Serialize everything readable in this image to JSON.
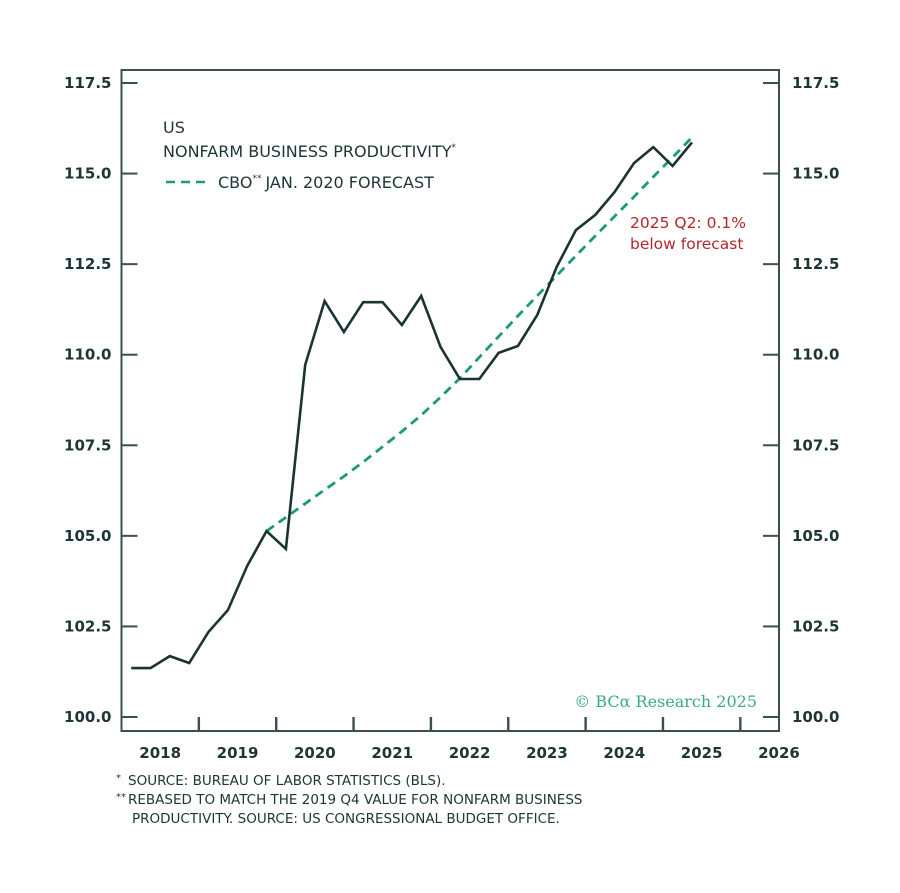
{
  "chart_data": {
    "type": "line",
    "title": "US NONFARM BUSINESS PRODUCTIVITY",
    "title_line1": "US",
    "title_line2": "NONFARM BUSINESS PRODUCTIVITY",
    "title_footnote_mark": "*",
    "xlabel": "",
    "ylabel": "",
    "xlim": [
      2018.0,
      2026.5
    ],
    "ylim": [
      100.0,
      117.5
    ],
    "grid": false,
    "x_tick_labels": [
      "2018",
      "2019",
      "2020",
      "2021",
      "2022",
      "2023",
      "2024",
      "2025",
      "2026"
    ],
    "y_tick_labels": [
      "100.0",
      "102.5",
      "105.0",
      "107.5",
      "110.0",
      "112.5",
      "115.0",
      "117.5"
    ],
    "y_ticks": [
      100.0,
      102.5,
      105.0,
      107.5,
      110.0,
      112.5,
      115.0,
      117.5
    ],
    "legend": {
      "placement": "top-left",
      "entries": [
        {
          "label": "CBO",
          "label_mark": "**",
          "label_rest": "JAN. 2020 FORECAST",
          "style": "dashed",
          "color": "#1a9a78"
        }
      ]
    },
    "series": [
      {
        "name": "US Nonfarm Business Productivity",
        "color": "#1c3333",
        "style": "solid",
        "x": [
          "2018Q1",
          "2018Q2",
          "2018Q3",
          "2018Q4",
          "2019Q1",
          "2019Q2",
          "2019Q3",
          "2019Q4",
          "2020Q1",
          "2020Q2",
          "2020Q3",
          "2020Q4",
          "2021Q1",
          "2021Q2",
          "2021Q3",
          "2021Q4",
          "2022Q1",
          "2022Q2",
          "2022Q3",
          "2022Q4",
          "2023Q1",
          "2023Q2",
          "2023Q3",
          "2023Q4",
          "2024Q1",
          "2024Q2",
          "2024Q3",
          "2024Q4",
          "2025Q1",
          "2025Q2"
        ],
        "values": [
          101.35,
          101.35,
          101.68,
          101.49,
          102.35,
          102.95,
          104.17,
          105.13,
          104.64,
          109.72,
          111.48,
          110.63,
          111.45,
          111.45,
          110.82,
          111.62,
          110.21,
          109.33,
          109.33,
          110.05,
          110.24,
          111.1,
          112.42,
          113.44,
          113.86,
          114.49,
          115.29,
          115.73,
          115.21,
          115.86
        ]
      },
      {
        "name": "CBO Jan. 2020 Forecast",
        "color": "#1a9a78",
        "style": "dashed",
        "x": [
          "2019Q4",
          "2020Q1",
          "2020Q2",
          "2020Q3",
          "2020Q4",
          "2021Q1",
          "2021Q2",
          "2021Q3",
          "2021Q4",
          "2022Q1",
          "2022Q2",
          "2022Q3",
          "2022Q4",
          "2023Q1",
          "2023Q2",
          "2023Q3",
          "2023Q4",
          "2024Q1",
          "2024Q2",
          "2024Q3",
          "2024Q4",
          "2025Q1",
          "2025Q2"
        ],
        "values": [
          105.13,
          105.51,
          105.89,
          106.27,
          106.64,
          107.04,
          107.46,
          107.88,
          108.33,
          108.83,
          109.35,
          109.93,
          110.5,
          111.07,
          111.63,
          112.18,
          112.73,
          113.28,
          113.82,
          114.36,
          114.91,
          115.45,
          116.0
        ]
      }
    ],
    "annotations": [
      {
        "text_line1": "2025 Q2: 0.1%",
        "text_line2": "below forecast",
        "color": "#b3262c"
      }
    ],
    "copyright": "© BCα Research 2025"
  },
  "footnotes": [
    {
      "mark": "*",
      "text": "SOURCE: BUREAU OF LABOR STATISTICS (BLS)."
    },
    {
      "mark": "**",
      "text": "REBASED TO MATCH THE 2019 Q4 VALUE FOR NONFARM BUSINESS"
    },
    {
      "mark": "",
      "text": "PRODUCTIVITY. SOURCE: US CONGRESSIONAL BUDGET OFFICE."
    }
  ],
  "colors": {
    "axis": "#3a4f4f",
    "actual_line": "#1c3333",
    "forecast_line": "#1a9a78",
    "annotation": "#b3262c",
    "brand": "#3aa88a"
  }
}
